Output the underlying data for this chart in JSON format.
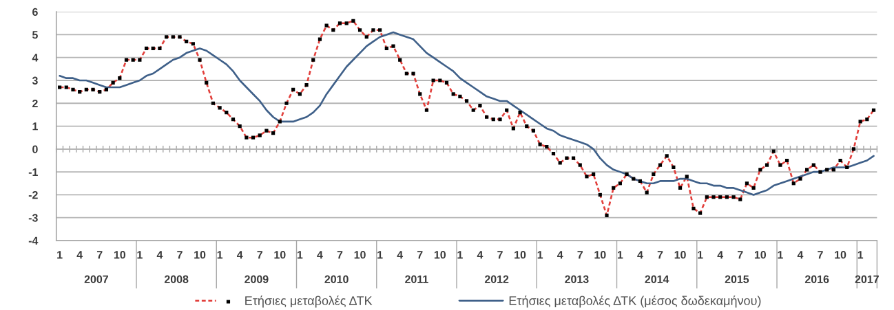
{
  "chart_data": {
    "type": "line",
    "categories": [
      "1",
      null,
      null,
      "4",
      null,
      null,
      "7",
      null,
      null,
      "10",
      null,
      null,
      "1",
      null,
      null,
      "4",
      null,
      null,
      "7",
      null,
      null,
      "10",
      null,
      null,
      "1",
      null,
      null,
      "4",
      null,
      null,
      "7",
      null,
      null,
      "10",
      null,
      null,
      "1",
      null,
      null,
      "4",
      null,
      null,
      "7",
      null,
      null,
      "10",
      null,
      null,
      "1",
      null,
      null,
      "4",
      null,
      null,
      "7",
      null,
      null,
      "10",
      null,
      null,
      "1",
      null,
      null,
      "4",
      null,
      null,
      "7",
      null,
      null,
      "10",
      null,
      null,
      "1",
      null,
      null,
      "4",
      null,
      null,
      "7",
      null,
      null,
      "10",
      null,
      null,
      "1",
      null,
      null,
      "4",
      null,
      null,
      "7",
      null,
      null,
      "10",
      null,
      null,
      "1",
      null,
      null,
      "4",
      null,
      null,
      "7",
      null,
      null,
      "10",
      null,
      null,
      "1",
      null,
      null,
      "4",
      null,
      null,
      "7",
      null,
      null,
      "10",
      null,
      null,
      "1",
      null,
      null
    ],
    "series": [
      {
        "name": "Ετήσιες μεταβολές ΔΤΚ",
        "color": "#e2403c",
        "line_style": "dashed",
        "marker": "square",
        "colors": [
          "#000000",
          "#000000",
          "#000000",
          "#000000",
          "#000000",
          "#000000",
          "#000000",
          "#000000",
          "#000000",
          "#000000",
          "#000000",
          "#000000",
          "#000000",
          "#000000",
          "#000000",
          "#000000",
          "#000000",
          "#000000",
          "#000000",
          "#000000",
          "#000000",
          "#000000",
          "#000000",
          "#000000",
          "#000000",
          "#000000",
          "#000000",
          "#000000",
          "#000000",
          "#000000",
          "#000000",
          "#000000",
          "#000000",
          "#000000",
          "#000000",
          "#000000",
          "#000000",
          "#000000",
          "#000000",
          "#000000",
          "#000000",
          "#000000",
          "#000000",
          "#000000",
          "#000000",
          "#000000",
          "#000000",
          "#000000",
          "#000000",
          "#000000",
          "#000000",
          "#000000",
          "#000000",
          "#000000",
          "#000000",
          "#000000",
          "#000000",
          "#000000",
          "#000000",
          "#000000",
          "#000000",
          "#000000",
          "#000000",
          "#000000",
          "#000000",
          "#000000",
          "#000000",
          "#000000",
          "#000000",
          "#000000",
          "#000000",
          "#000000",
          "#000000",
          "#000000",
          "#000000",
          "#000000",
          "#000000",
          "#000000",
          "#000000",
          "#000000",
          "#000000",
          "#000000",
          "#000000",
          "#000000",
          "#000000",
          "#000000",
          "#000000",
          "#000000",
          "#000000",
          "#000000",
          "#000000",
          "#000000",
          "#000000",
          "#000000",
          "#000000",
          "#000000",
          "#000000",
          "#000000",
          "#000000",
          "#000000",
          "#000000",
          "#000000",
          "#000000",
          "#000000",
          "#000000",
          "#000000",
          "#000000",
          "#000000",
          "#000000",
          "#000000",
          "#000000",
          "#000000",
          "#000000",
          "#000000",
          "#000000",
          "#000000",
          "#000000",
          "#000000",
          "#000000",
          "#000000",
          "#000000",
          "#000000",
          "#000000"
        ],
        "values": [
          2.7,
          2.7,
          2.6,
          2.5,
          2.6,
          2.6,
          2.5,
          2.6,
          2.9,
          3.1,
          3.9,
          3.9,
          3.9,
          4.4,
          4.4,
          4.4,
          4.9,
          4.9,
          4.9,
          4.7,
          4.6,
          3.9,
          2.9,
          2.0,
          1.8,
          1.6,
          1.3,
          1.0,
          0.5,
          0.5,
          0.6,
          0.8,
          0.7,
          1.2,
          2.0,
          2.6,
          2.4,
          2.8,
          3.9,
          4.8,
          5.4,
          5.2,
          5.5,
          5.5,
          5.6,
          5.2,
          4.9,
          5.2,
          5.2,
          4.4,
          4.5,
          3.9,
          3.3,
          3.3,
          2.4,
          1.7,
          3.0,
          3.0,
          2.9,
          2.4,
          2.3,
          2.1,
          1.7,
          1.9,
          1.4,
          1.3,
          1.3,
          1.7,
          0.9,
          1.6,
          1.0,
          0.8,
          0.2,
          0.1,
          -0.2,
          -0.6,
          -0.4,
          -0.4,
          -0.7,
          -1.2,
          -1.1,
          -2.0,
          -2.9,
          -1.7,
          -1.5,
          -1.1,
          -1.3,
          -1.4,
          -1.9,
          -1.1,
          -0.7,
          -0.3,
          -0.8,
          -1.7,
          -1.2,
          -2.6,
          -2.8,
          -2.1,
          -2.1,
          -2.1,
          -2.1,
          -2.1,
          -2.2,
          -1.5,
          -1.7,
          -0.9,
          -0.7,
          -0.1,
          -0.7,
          -0.5,
          -1.5,
          -1.3,
          -0.9,
          -0.7,
          -1.0,
          -0.9,
          -0.9,
          -0.5,
          -0.8,
          0.0,
          1.2,
          1.3,
          1.7
        ]
      },
      {
        "name": "Ετήσιες μεταβολές ΔΤΚ (μέσος δωδεκαμήνου)",
        "color": "#3f6089",
        "line_style": "solid",
        "marker": "none",
        "values": [
          3.2,
          3.1,
          3.1,
          3.0,
          3.0,
          2.9,
          2.8,
          2.7,
          2.7,
          2.7,
          2.8,
          2.9,
          3.0,
          3.2,
          3.3,
          3.5,
          3.7,
          3.9,
          4.0,
          4.2,
          4.3,
          4.4,
          4.3,
          4.1,
          3.9,
          3.7,
          3.4,
          3.0,
          2.7,
          2.4,
          2.1,
          1.7,
          1.4,
          1.2,
          1.2,
          1.2,
          1.3,
          1.4,
          1.6,
          1.9,
          2.4,
          2.8,
          3.2,
          3.6,
          3.9,
          4.2,
          4.5,
          4.7,
          4.9,
          5.0,
          5.1,
          5.0,
          4.9,
          4.8,
          4.5,
          4.2,
          4.0,
          3.8,
          3.6,
          3.4,
          3.1,
          2.9,
          2.7,
          2.5,
          2.3,
          2.2,
          2.1,
          2.1,
          1.9,
          1.7,
          1.5,
          1.3,
          1.1,
          0.9,
          0.8,
          0.6,
          0.5,
          0.4,
          0.3,
          0.2,
          0.0,
          -0.4,
          -0.7,
          -0.9,
          -1.0,
          -1.1,
          -1.3,
          -1.4,
          -1.5,
          -1.5,
          -1.4,
          -1.4,
          -1.4,
          -1.3,
          -1.3,
          -1.4,
          -1.5,
          -1.5,
          -1.6,
          -1.6,
          -1.7,
          -1.7,
          -1.8,
          -1.9,
          -2.0,
          -1.9,
          -1.8,
          -1.6,
          -1.5,
          -1.4,
          -1.3,
          -1.2,
          -1.1,
          -1.0,
          -1.0,
          -0.9,
          -0.8,
          -0.8,
          -0.8,
          -0.7,
          -0.6,
          -0.5,
          -0.3
        ]
      }
    ],
    "ylim": [
      -4,
      6
    ],
    "yticks": [
      -4,
      -3,
      -2,
      -1,
      0,
      1,
      2,
      3,
      4,
      5,
      6
    ],
    "grid": "y",
    "legend": "bottom",
    "ref_lines": [
      {
        "axis": "y",
        "value": 0,
        "color": "#a6a6a6"
      }
    ],
    "annotations": [
      "2007",
      "2008",
      "2009",
      "2010",
      "2011",
      "2012",
      "2013",
      "2014",
      "2015",
      "2016",
      "2017"
    ]
  }
}
